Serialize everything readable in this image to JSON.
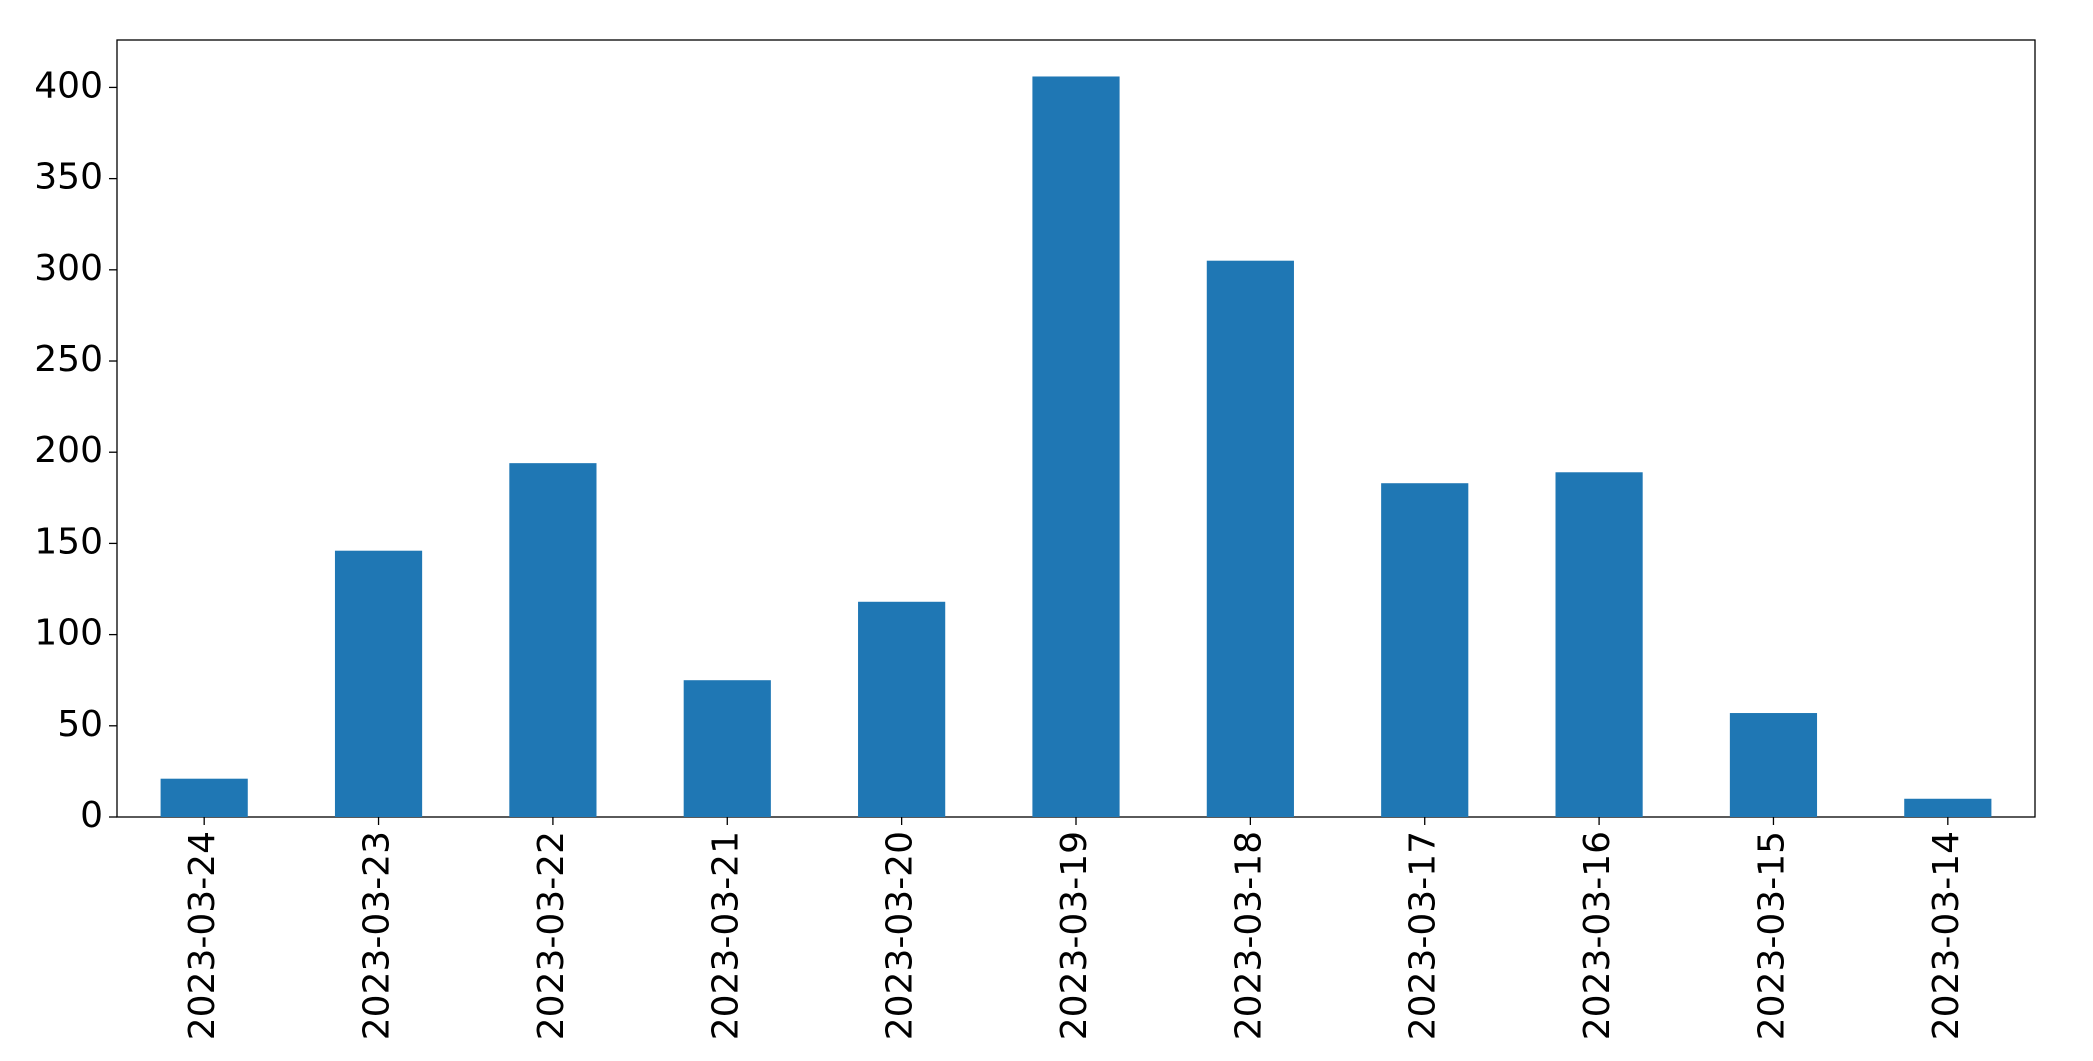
{
  "chart_data": {
    "type": "bar",
    "categories": [
      "2023-03-24",
      "2023-03-23",
      "2023-03-22",
      "2023-03-21",
      "2023-03-20",
      "2023-03-19",
      "2023-03-18",
      "2023-03-17",
      "2023-03-16",
      "2023-03-15",
      "2023-03-14"
    ],
    "values": [
      21,
      146,
      194,
      75,
      118,
      406,
      305,
      183,
      189,
      57,
      10
    ],
    "color": "#1f77b4",
    "ylim": [
      0,
      426
    ],
    "yticks": [
      0,
      50,
      100,
      150,
      200,
      250,
      300,
      350,
      400
    ],
    "grid": false
  }
}
